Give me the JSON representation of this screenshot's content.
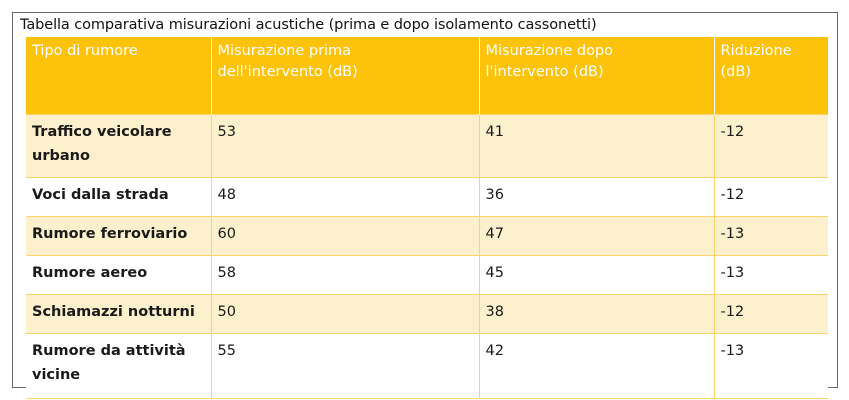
{
  "caption": "Tabella comparativa misurazioni acustiche (prima e dopo isolamento cassonetti)",
  "table": {
    "headers": [
      [
        "Tipo di rumore"
      ],
      [
        "Misurazione prima",
        "dell'intervento (dB)"
      ],
      [
        "Misurazione dopo",
        "l'intervento (dB)"
      ],
      [
        "Riduzione",
        "(dB)"
      ]
    ],
    "rows": [
      {
        "tipo": [
          "Traffico veicolare",
          "urbano"
        ],
        "prima": "53",
        "dopo": "41",
        "riduzione": "-12"
      },
      {
        "tipo": [
          "Voci dalla strada"
        ],
        "prima": "48",
        "dopo": "36",
        "riduzione": "-12"
      },
      {
        "tipo": [
          "Rumore ferroviario"
        ],
        "prima": "60",
        "dopo": "47",
        "riduzione": "-13"
      },
      {
        "tipo": [
          "Rumore aereo"
        ],
        "prima": "58",
        "dopo": "45",
        "riduzione": "-13"
      },
      {
        "tipo": [
          "Schiamazzi notturni"
        ],
        "prima": "50",
        "dopo": "38",
        "riduzione": "-12"
      },
      {
        "tipo": [
          "Rumore da attività",
          "vicine"
        ],
        "prima": "55",
        "dopo": "42",
        "riduzione": "-13"
      }
    ]
  },
  "colors": {
    "header_bg": "#fdc20a",
    "header_text": "#ffffff",
    "band_row": "#fdf0cd",
    "plain_row": "#ffffff"
  }
}
